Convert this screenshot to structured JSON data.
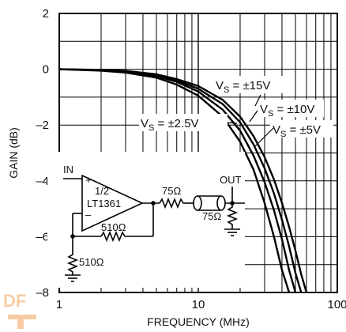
{
  "chart_data": {
    "type": "line",
    "xlabel": "FREQUENCY (MHz)",
    "ylabel": "GAIN (dB)",
    "xscale": "log",
    "xlim": [
      1,
      100
    ],
    "ylim": [
      -8,
      2
    ],
    "grid": true,
    "x_ticks": [
      {
        "value": 1,
        "label": "1"
      },
      {
        "value": 10,
        "label": "10"
      },
      {
        "value": 100,
        "label": "100"
      }
    ],
    "y_ticks": [
      {
        "value": 2,
        "label": "2"
      },
      {
        "value": 0,
        "label": "0"
      },
      {
        "value": -2,
        "label": "–2"
      },
      {
        "value": -4,
        "label": "–4"
      },
      {
        "value": -6,
        "label": "–6"
      },
      {
        "value": -8,
        "label": "–8"
      }
    ],
    "series": [
      {
        "name": "VS = ±2.5V",
        "x": [
          1,
          2,
          3,
          5,
          7,
          10,
          15,
          20,
          25,
          30,
          35,
          40,
          45
        ],
        "y": [
          0,
          -0.05,
          -0.12,
          -0.3,
          -0.55,
          -0.95,
          -1.7,
          -2.6,
          -3.6,
          -4.8,
          -6.0,
          -7.2,
          -8.0
        ]
      },
      {
        "name": "VS = ±5V",
        "x": [
          1,
          2,
          3,
          5,
          7,
          10,
          15,
          20,
          25,
          30,
          35,
          40,
          45,
          50
        ],
        "y": [
          0,
          -0.04,
          -0.1,
          -0.25,
          -0.45,
          -0.8,
          -1.45,
          -2.2,
          -3.1,
          -4.05,
          -5.05,
          -6.1,
          -7.2,
          -8.0
        ]
      },
      {
        "name": "VS = ±10V",
        "x": [
          1,
          2,
          3,
          5,
          7,
          10,
          15,
          20,
          25,
          30,
          35,
          40,
          45,
          50,
          55
        ],
        "y": [
          0,
          -0.03,
          -0.08,
          -0.22,
          -0.4,
          -0.7,
          -1.25,
          -1.9,
          -2.7,
          -3.55,
          -4.45,
          -5.4,
          -6.35,
          -7.3,
          -8.0
        ]
      },
      {
        "name": "VS = ±15V",
        "x": [
          1,
          2,
          3,
          5,
          7,
          10,
          15,
          20,
          25,
          30,
          35,
          40,
          45,
          50,
          55,
          60
        ],
        "y": [
          0,
          -0.02,
          -0.06,
          -0.18,
          -0.35,
          -0.6,
          -1.1,
          -1.7,
          -2.4,
          -3.15,
          -3.95,
          -4.8,
          -5.65,
          -6.5,
          -7.35,
          -8.0
        ]
      }
    ],
    "annotations": [
      {
        "text": "VS = ±15V"
      },
      {
        "text": "VS = ±10V"
      },
      {
        "text": "VS = ±2.5V"
      },
      {
        "text": "VS = ±5V"
      }
    ],
    "inset_circuit": {
      "labels": [
        "IN",
        "+",
        "–",
        "1/2",
        "LT1361",
        "75Ω",
        "OUT",
        "75Ω",
        "510Ω",
        "510Ω"
      ]
    },
    "watermark": "DF"
  }
}
